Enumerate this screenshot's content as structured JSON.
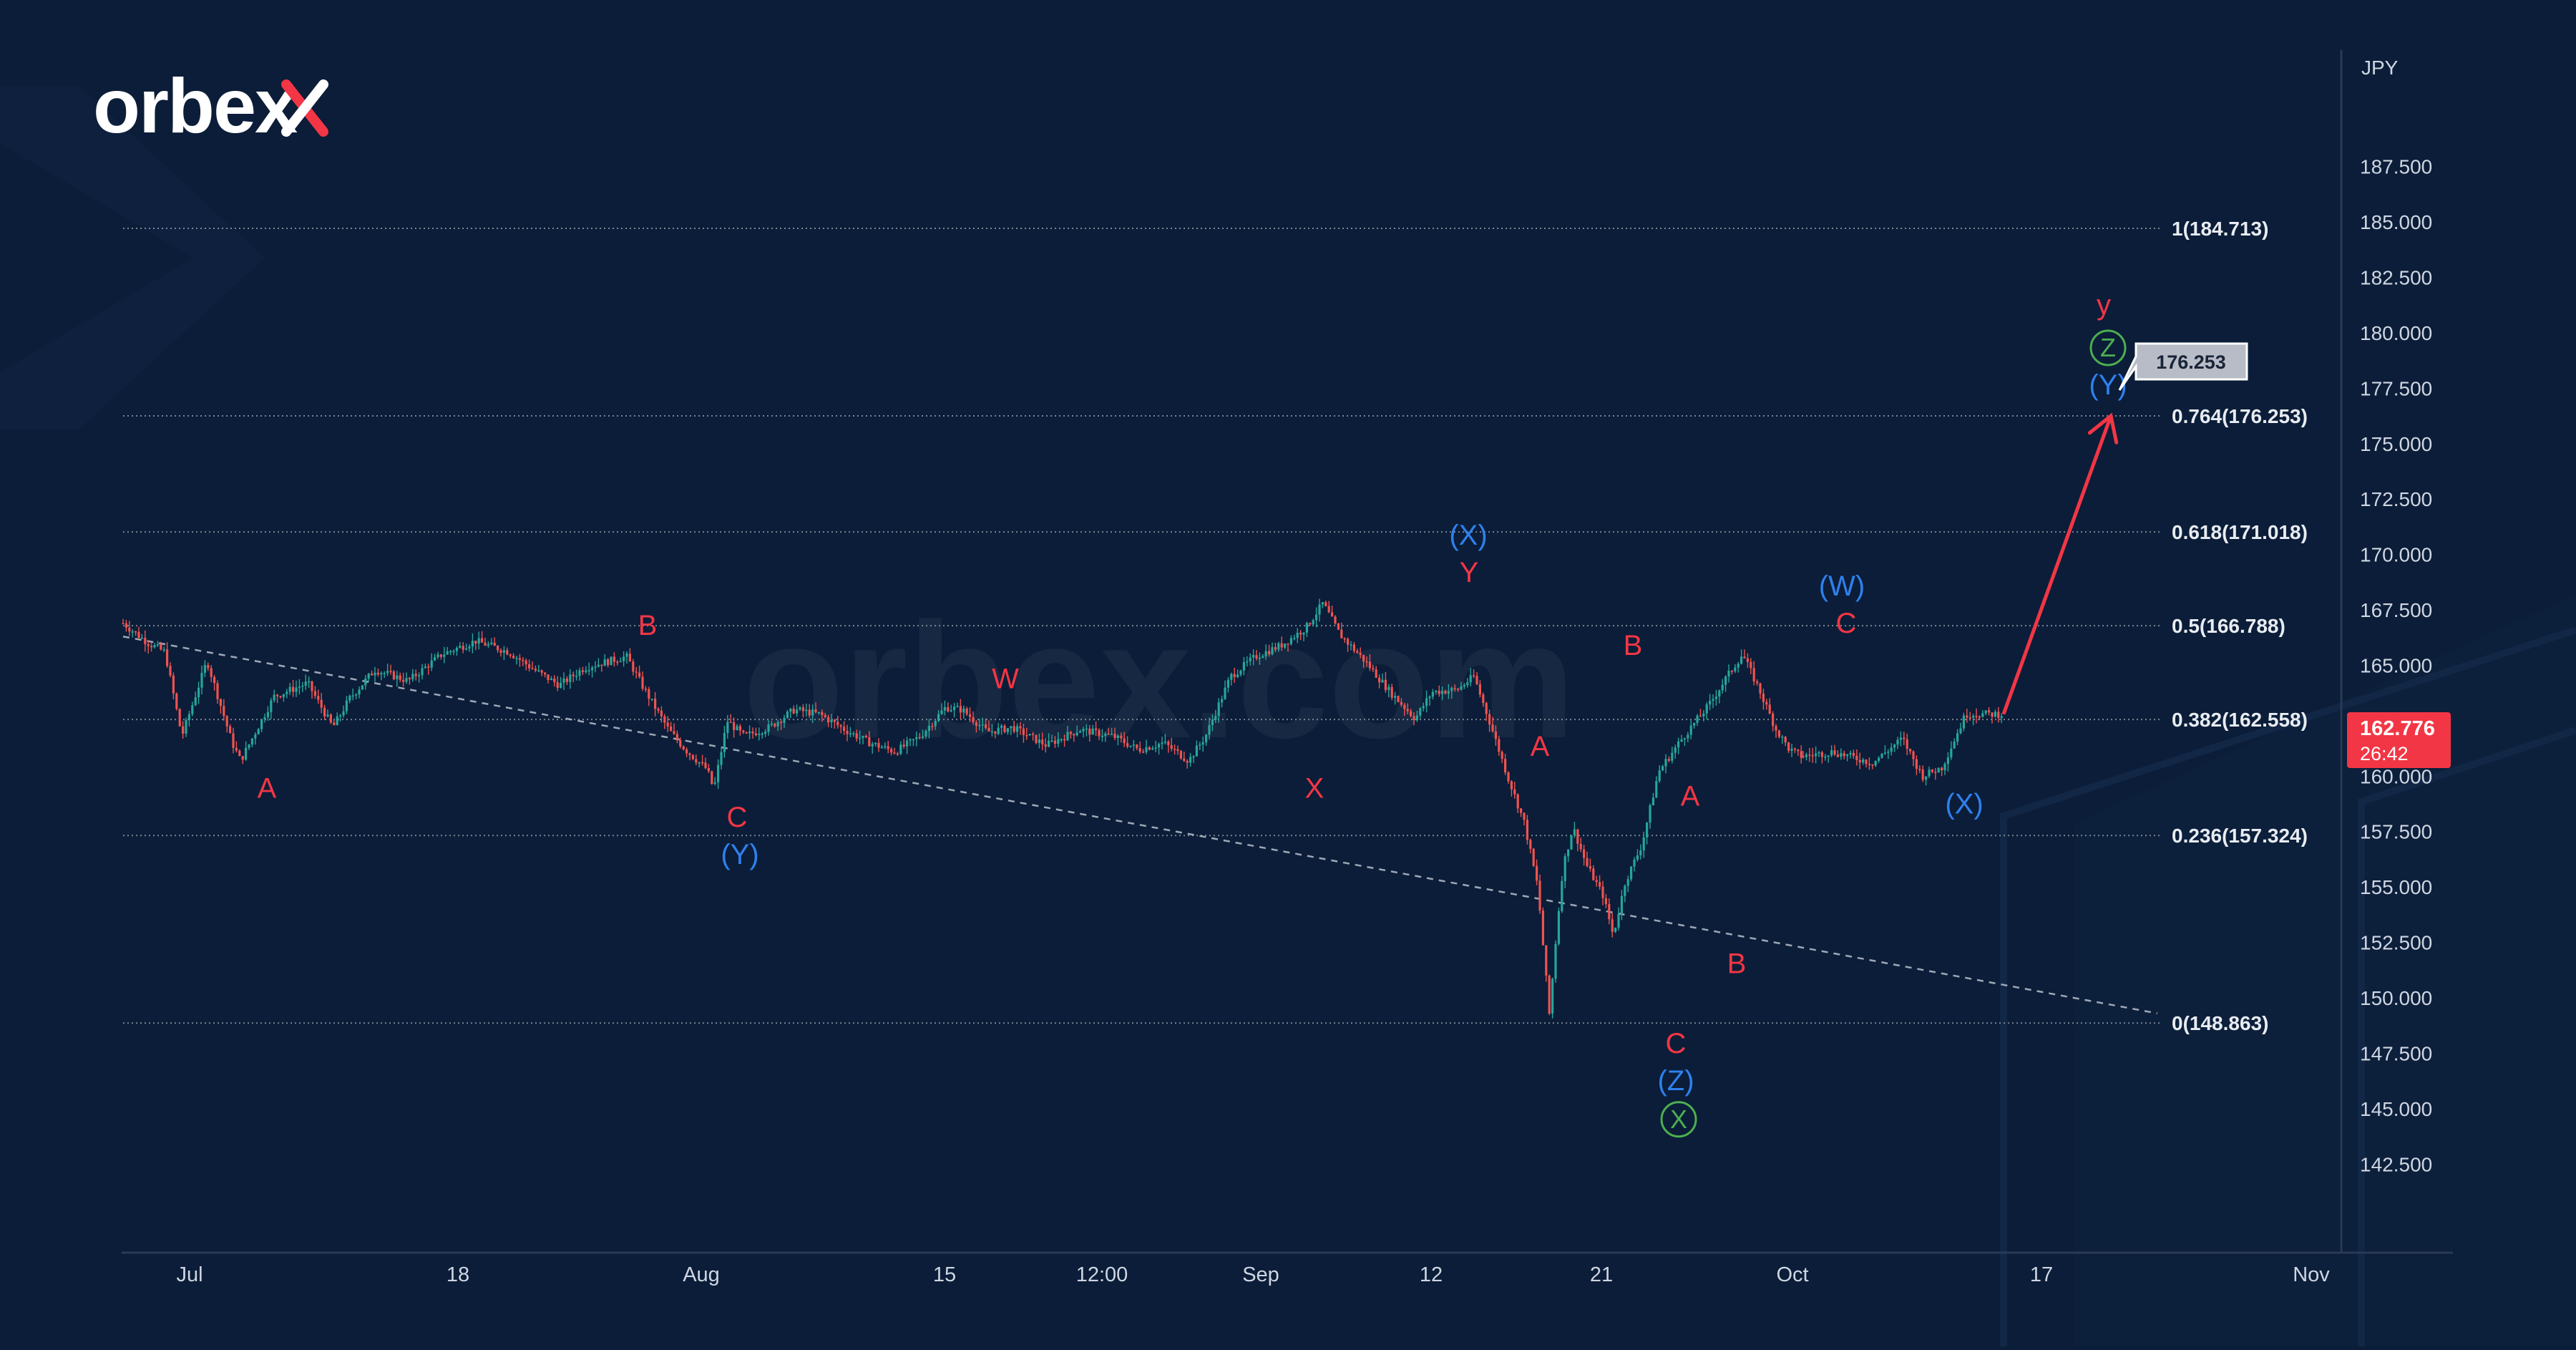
{
  "brand": {
    "logo_text": "orbex",
    "watermark_text": "orbex.com"
  },
  "price_axis": {
    "currency_label": "JPY"
  },
  "current_price": {
    "value": "162.776",
    "countdown": "26:42"
  },
  "target": {
    "label": "176.253",
    "value": 176.253
  },
  "colors": {
    "background": "#0b1d38",
    "up_candle": "#26a69a",
    "down_candle": "#ef5350",
    "wave_red": "#f23645",
    "wave_blue": "#2f80ed",
    "wave_green": "#4caf50",
    "fib_line": "#7a8494",
    "price_badge": "#f23645"
  },
  "chart_data": {
    "type": "line",
    "title": "",
    "ylabel": "JPY",
    "ylim": [
      140.7,
      190.3
    ],
    "x_ticks": [
      "Jul",
      "18",
      "Aug",
      "15",
      "12:00",
      "Sep",
      "12",
      "21",
      "Oct",
      "17",
      "Nov"
    ],
    "y_ticks": [
      "142.500",
      "145.000",
      "147.500",
      "150.000",
      "152.500",
      "155.000",
      "157.500",
      "160.000",
      "162.500",
      "165.000",
      "167.500",
      "170.000",
      "172.500",
      "175.000",
      "177.500",
      "180.000",
      "182.500",
      "185.000",
      "187.500"
    ],
    "fib_levels": [
      {
        "label": "1(184.713)",
        "value": 184.713
      },
      {
        "label": "0.764(176.253)",
        "value": 176.253
      },
      {
        "label": "0.618(171.018)",
        "value": 171.018
      },
      {
        "label": "0.5(166.788)",
        "value": 166.788
      },
      {
        "label": "0.382(162.558)",
        "value": 162.558
      },
      {
        "label": "0.236(157.324)",
        "value": 157.324
      },
      {
        "label": "0(148.863)",
        "value": 148.863
      }
    ],
    "price_path": [
      {
        "t": 0,
        "p": 166.9
      },
      {
        "t": 0.015,
        "p": 166.0
      },
      {
        "t": 0.025,
        "p": 165.6
      },
      {
        "t": 0.035,
        "p": 161.8
      },
      {
        "t": 0.05,
        "p": 165.2
      },
      {
        "t": 0.065,
        "p": 161.5
      },
      {
        "t": 0.07,
        "p": 160.7
      },
      {
        "t": 0.09,
        "p": 163.6
      },
      {
        "t": 0.11,
        "p": 164.2
      },
      {
        "t": 0.125,
        "p": 162.2
      },
      {
        "t": 0.135,
        "p": 163.5
      },
      {
        "t": 0.15,
        "p": 164.8
      },
      {
        "t": 0.17,
        "p": 164.3
      },
      {
        "t": 0.19,
        "p": 165.5
      },
      {
        "t": 0.21,
        "p": 166.1
      },
      {
        "t": 0.23,
        "p": 165.6
      },
      {
        "t": 0.245,
        "p": 164.8
      },
      {
        "t": 0.26,
        "p": 164.1
      },
      {
        "t": 0.275,
        "p": 164.9
      },
      {
        "t": 0.29,
        "p": 165.2
      },
      {
        "t": 0.3,
        "p": 165.4
      },
      {
        "t": 0.31,
        "p": 164.0
      },
      {
        "t": 0.325,
        "p": 162.1
      },
      {
        "t": 0.335,
        "p": 161.2
      },
      {
        "t": 0.348,
        "p": 160.3
      },
      {
        "t": 0.352,
        "p": 159.4
      },
      {
        "t": 0.36,
        "p": 162.5
      },
      {
        "t": 0.37,
        "p": 161.8
      },
      {
        "t": 0.385,
        "p": 162.2
      },
      {
        "t": 0.4,
        "p": 163.0
      },
      {
        "t": 0.415,
        "p": 162.8
      },
      {
        "t": 0.43,
        "p": 162.1
      },
      {
        "t": 0.445,
        "p": 161.5
      },
      {
        "t": 0.46,
        "p": 161.1
      },
      {
        "t": 0.475,
        "p": 161.8
      },
      {
        "t": 0.49,
        "p": 163.1
      },
      {
        "t": 0.5,
        "p": 163.0
      },
      {
        "t": 0.515,
        "p": 162.0
      },
      {
        "t": 0.53,
        "p": 162.2
      },
      {
        "t": 0.55,
        "p": 161.4
      },
      {
        "t": 0.57,
        "p": 162.1
      },
      {
        "t": 0.59,
        "p": 161.8
      },
      {
        "t": 0.605,
        "p": 161.2
      },
      {
        "t": 0.62,
        "p": 161.5
      },
      {
        "t": 0.635,
        "p": 160.7
      },
      {
        "t": 0.645,
        "p": 161.8
      },
      {
        "t": 0.66,
        "p": 164.5
      },
      {
        "t": 0.675,
        "p": 165.4
      },
      {
        "t": 0.69,
        "p": 165.9
      },
      {
        "t": 0.705,
        "p": 166.7
      },
      {
        "t": 0.715,
        "p": 167.8
      },
      {
        "t": 0.725,
        "p": 166.4
      },
      {
        "t": 0.74,
        "p": 165.2
      },
      {
        "t": 0.755,
        "p": 163.8
      },
      {
        "t": 0.77,
        "p": 162.6
      },
      {
        "t": 0.78,
        "p": 163.8
      },
      {
        "t": 0.795,
        "p": 163.9
      },
      {
        "t": 0.805,
        "p": 164.5
      },
      {
        "t": 0.815,
        "p": 162.3
      },
      {
        "t": 0.825,
        "p": 160.0
      },
      {
        "t": 0.835,
        "p": 157.9
      },
      {
        "t": 0.843,
        "p": 155.0
      },
      {
        "t": 0.85,
        "p": 149.2
      },
      {
        "t": 0.853,
        "p": 152.0
      },
      {
        "t": 0.858,
        "p": 155.9
      },
      {
        "t": 0.864,
        "p": 157.7
      },
      {
        "t": 0.872,
        "p": 156.0
      },
      {
        "t": 0.882,
        "p": 154.6
      },
      {
        "t": 0.888,
        "p": 152.8
      },
      {
        "t": 0.895,
        "p": 155.2
      },
      {
        "t": 0.905,
        "p": 156.9
      },
      {
        "t": 0.915,
        "p": 160.2
      },
      {
        "t": 0.93,
        "p": 161.8
      },
      {
        "t": 0.945,
        "p": 163.2
      },
      {
        "t": 0.955,
        "p": 164.4
      },
      {
        "t": 0.965,
        "p": 165.5
      },
      {
        "t": 0.975,
        "p": 163.9
      },
      {
        "t": 0.985,
        "p": 162.1
      },
      {
        "t": 0.993,
        "p": 161.2
      },
      {
        "t": 1.0,
        "p": 160.9
      }
    ],
    "price_path_tail": [
      {
        "t": 0,
        "p": 160.9
      },
      {
        "t": 0.15,
        "p": 161.1
      },
      {
        "t": 0.35,
        "p": 160.6
      },
      {
        "t": 0.5,
        "p": 161.7
      },
      {
        "t": 0.6,
        "p": 160.0
      },
      {
        "t": 0.7,
        "p": 160.4
      },
      {
        "t": 0.82,
        "p": 162.8
      },
      {
        "t": 1.0,
        "p": 162.8
      }
    ],
    "trendline": {
      "from": 166.3,
      "to": 149.3
    },
    "projection": {
      "from": 162.8,
      "to": 176.253
    },
    "wave_labels": [
      {
        "text": "A",
        "color": "red",
        "style": "plain",
        "at": 160.7,
        "pos": "below"
      },
      {
        "text": "B",
        "color": "red",
        "style": "plain",
        "at": 165.4,
        "pos": "above"
      },
      {
        "text": "C",
        "color": "red",
        "style": "plain",
        "at": 159.4,
        "pos": "below"
      },
      {
        "text": "(Y)",
        "color": "blue",
        "style": "plain",
        "at": 159.4,
        "pos": "below2"
      },
      {
        "text": "W",
        "color": "red",
        "style": "plain",
        "at": 163.0,
        "pos": "above"
      },
      {
        "text": "X",
        "color": "red",
        "style": "plain",
        "at": 160.7,
        "pos": "below"
      },
      {
        "text": "Y",
        "color": "red",
        "style": "plain",
        "at": 167.8,
        "pos": "above"
      },
      {
        "text": "(X)",
        "color": "blue",
        "style": "plain",
        "at": 167.8,
        "pos": "above2"
      },
      {
        "text": "A",
        "color": "red",
        "style": "plain",
        "at": 162.6,
        "pos": "below"
      },
      {
        "text": "B",
        "color": "red",
        "style": "plain",
        "at": 164.5,
        "pos": "above"
      },
      {
        "text": "A",
        "color": "red",
        "style": "plain",
        "at": 157.7,
        "pos": "above"
      },
      {
        "text": "B",
        "color": "red",
        "style": "plain",
        "at": 152.8,
        "pos": "below"
      },
      {
        "text": "C",
        "color": "red",
        "style": "plain",
        "at": 149.2,
        "pos": "below"
      },
      {
        "text": "(Z)",
        "color": "blue",
        "style": "plain",
        "at": 149.2,
        "pos": "below2"
      },
      {
        "text": "X",
        "color": "green",
        "style": "circle",
        "at": 149.2,
        "pos": "below3"
      },
      {
        "text": "C",
        "color": "red",
        "style": "plain",
        "at": 165.5,
        "pos": "above"
      },
      {
        "text": "(W)",
        "color": "blue",
        "style": "plain",
        "at": 165.5,
        "pos": "above2"
      },
      {
        "text": "(X)",
        "color": "blue",
        "style": "plain",
        "at": 160.0,
        "pos": "below"
      },
      {
        "text": "(Y)",
        "color": "blue",
        "style": "plain",
        "at": 176.253,
        "pos": "above"
      },
      {
        "text": "Z",
        "color": "green",
        "style": "circle",
        "at": 176.253,
        "pos": "above2"
      },
      {
        "text": "y",
        "color": "red",
        "style": "plain",
        "at": 176.253,
        "pos": "above3"
      }
    ]
  }
}
